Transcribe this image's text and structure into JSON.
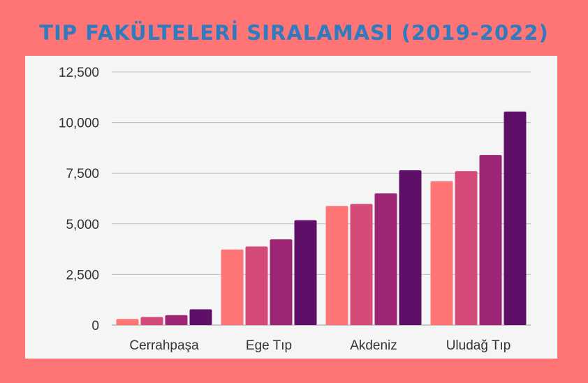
{
  "chart_data": {
    "type": "bar",
    "title": "TIP FAKÜLTELERİ SIRALAMASI (2019-2022)",
    "categories": [
      "Cerrahpaşa",
      "Ege Tıp",
      "Akdeniz",
      "Uludağ Tıp"
    ],
    "series": [
      {
        "values": [
          300,
          3730,
          5880,
          7100
        ],
        "color": "#ff7575"
      },
      {
        "values": [
          400,
          3880,
          5980,
          7600
        ],
        "color": "#d44a78"
      },
      {
        "values": [
          490,
          4230,
          6500,
          8400
        ],
        "color": "#9e2476"
      },
      {
        "values": [
          780,
          5180,
          7640,
          10540
        ],
        "color": "#5e1068"
      }
    ],
    "ylim": [
      0,
      12500
    ],
    "yticks": [
      "0",
      "2,500",
      "5,000",
      "7,500",
      "10,000",
      "12,500"
    ],
    "ytick_values": [
      0,
      2500,
      5000,
      7500,
      10000,
      12500
    ],
    "grid": true,
    "legend": "none"
  }
}
